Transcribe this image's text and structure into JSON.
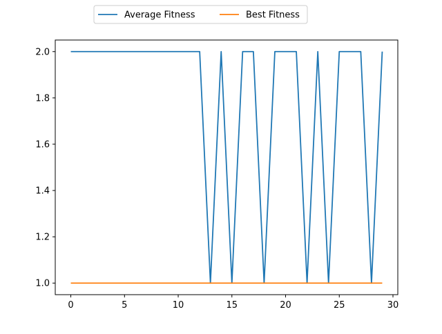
{
  "chart_data": {
    "type": "line",
    "title": "",
    "xlabel": "",
    "ylabel": "",
    "xlim": [
      -1.45,
      30.45
    ],
    "ylim": [
      0.95,
      2.05
    ],
    "x_ticks": [
      0,
      5,
      10,
      15,
      20,
      25,
      30
    ],
    "y_ticks": [
      1.0,
      1.2,
      1.4,
      1.6,
      1.8,
      2.0
    ],
    "x_tick_labels": [
      "0",
      "5",
      "10",
      "15",
      "20",
      "25",
      "30"
    ],
    "y_tick_labels": [
      "1.0",
      "1.2",
      "1.4",
      "1.6",
      "1.8",
      "2.0"
    ],
    "grid": false,
    "legend_position": "top-center, above plot, 2 columns",
    "x": [
      0,
      1,
      2,
      3,
      4,
      5,
      6,
      7,
      8,
      9,
      10,
      11,
      12,
      13,
      14,
      15,
      16,
      17,
      18,
      19,
      20,
      21,
      22,
      23,
      24,
      25,
      26,
      27,
      28,
      29
    ],
    "series": [
      {
        "name": "Average Fitness",
        "color": "#1f77b4",
        "values": [
          2,
          2,
          2,
          2,
          2,
          2,
          2,
          2,
          2,
          2,
          2,
          2,
          2,
          1,
          2,
          1,
          2,
          2,
          1,
          2,
          2,
          2,
          1,
          2,
          1,
          2,
          2,
          2,
          1,
          2
        ]
      },
      {
        "name": "Best Fitness",
        "color": "#ff7f0e",
        "values": [
          1,
          1,
          1,
          1,
          1,
          1,
          1,
          1,
          1,
          1,
          1,
          1,
          1,
          1,
          1,
          1,
          1,
          1,
          1,
          1,
          1,
          1,
          1,
          1,
          1,
          1,
          1,
          1,
          1,
          1
        ]
      }
    ]
  }
}
